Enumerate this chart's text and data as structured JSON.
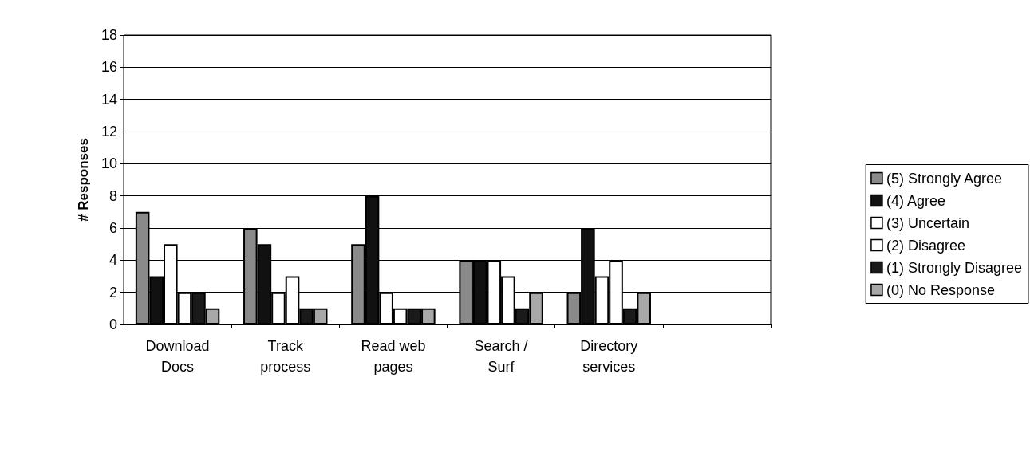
{
  "chart_data": {
    "type": "bar",
    "ylabel": "# Responses",
    "categories": [
      "Download\nDocs",
      "Track\nprocess",
      "Read web\npages",
      "Search /\nSurf",
      "Directory\nservices",
      null
    ],
    "series": [
      {
        "name": "(5) Strongly Agree",
        "color": "#8a8a8a",
        "values": [
          7,
          6,
          5,
          4,
          2,
          null
        ]
      },
      {
        "name": "(4) Agree",
        "color": "#111111",
        "values": [
          3,
          5,
          8,
          4,
          6,
          null
        ]
      },
      {
        "name": "(3) Uncertain",
        "color": "#ffffff",
        "values": [
          5,
          2,
          2,
          4,
          3,
          null
        ]
      },
      {
        "name": "(2) Disagree",
        "color": "#ffffff",
        "values": [
          2,
          3,
          1,
          3,
          4,
          null
        ]
      },
      {
        "name": "(1) Strongly Disagree",
        "color": "#1a1a1a",
        "values": [
          2,
          1,
          1,
          1,
          1,
          null
        ]
      },
      {
        "name": "(0) No Response",
        "color": "#a8a8a8",
        "values": [
          1,
          1,
          1,
          2,
          2,
          null
        ]
      }
    ],
    "ylim": [
      0,
      18
    ],
    "yticks": [
      0,
      2,
      4,
      6,
      8,
      10,
      12,
      14,
      16,
      18
    ],
    "grid": "y",
    "legend": "right"
  }
}
